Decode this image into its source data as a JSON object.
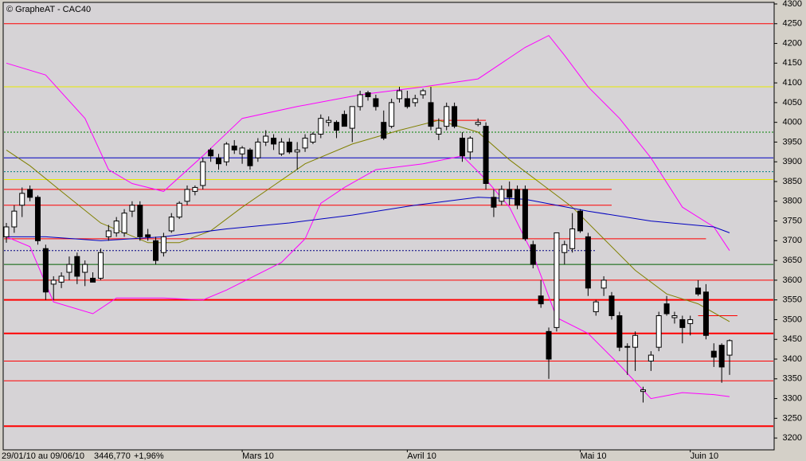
{
  "chart_data": {
    "type": "candlestick",
    "title": "© GrapheAT - CAC40",
    "period": "29/01/10 au 09/06/10",
    "last": "3446,770",
    "change": "+1,96%",
    "ylim": [
      3170,
      4304
    ],
    "yticks": [
      3200,
      3250,
      3300,
      3350,
      3400,
      3450,
      3500,
      3550,
      3600,
      3650,
      3700,
      3750,
      3800,
      3850,
      3900,
      3950,
      4000,
      4050,
      4100,
      4150,
      4200,
      4250,
      4300
    ],
    "xlabels": [
      {
        "value": 30,
        "label": "Mars 10"
      },
      {
        "value": 51,
        "label": "Avril 10"
      },
      {
        "value": 73,
        "label": "Mai 10"
      },
      {
        "value": 87,
        "label": "Juin 10"
      }
    ],
    "up_color": "#ffffff",
    "down_color": "#000000",
    "open": [
      3710,
      3735,
      3790,
      3830,
      3810,
      3680,
      3590,
      3595,
      3620,
      3660,
      3620,
      3605,
      3605,
      3710,
      3720,
      3720,
      3775,
      3790,
      3715,
      3700,
      3670,
      3725,
      3760,
      3800,
      3825,
      3840,
      3930,
      3910,
      3900,
      3940,
      3920,
      3930,
      3910,
      3950,
      3960,
      3920,
      3950,
      3925,
      3935,
      3950,
      3970,
      4000,
      4000,
      4020,
      3985,
      4040,
      4075,
      4060,
      4000,
      3990,
      4060,
      4060,
      4050,
      4070,
      4050,
      3970,
      3990,
      4040,
      3960,
      3925,
      3995,
      3990,
      3810,
      3800,
      3830,
      3830,
      3830,
      3690,
      3560,
      3470,
      3480,
      3670,
      3680,
      3775,
      3710,
      3520,
      3580,
      3560,
      3510,
      3430,
      3430,
      3318,
      3395,
      3430,
      3540,
      3505,
      3500,
      3490,
      3580,
      3570,
      3420,
      3435,
      3410
    ],
    "high": [
      3745,
      3790,
      3835,
      3840,
      3815,
      3690,
      3610,
      3620,
      3660,
      3670,
      3650,
      3620,
      3680,
      3740,
      3760,
      3780,
      3800,
      3800,
      3730,
      3710,
      3720,
      3770,
      3800,
      3840,
      3840,
      3910,
      3935,
      3920,
      3950,
      3955,
      3940,
      3935,
      3960,
      3980,
      3970,
      3960,
      3960,
      3950,
      3970,
      3975,
      4020,
      4015,
      4005,
      4030,
      4040,
      4080,
      4080,
      4070,
      4030,
      4060,
      4090,
      4080,
      4070,
      4085,
      4090,
      4010,
      4050,
      4050,
      3975,
      3965,
      4010,
      4000,
      3830,
      3840,
      3850,
      3840,
      3840,
      3700,
      3600,
      3480,
      3720,
      3700,
      3770,
      3780,
      3720,
      3550,
      3610,
      3570,
      3520,
      3440,
      3470,
      3330,
      3420,
      3520,
      3560,
      3520,
      3510,
      3510,
      3600,
      3590,
      3440,
      3440,
      3450
    ],
    "low": [
      3695,
      3720,
      3760,
      3800,
      3690,
      3550,
      3550,
      3580,
      3600,
      3590,
      3585,
      3595,
      3600,
      3700,
      3710,
      3710,
      3760,
      3700,
      3700,
      3640,
      3660,
      3720,
      3755,
      3790,
      3815,
      3830,
      3900,
      3880,
      3890,
      3920,
      3895,
      3880,
      3900,
      3940,
      3930,
      3915,
      3920,
      3880,
      3925,
      3945,
      3960,
      3990,
      3960,
      3990,
      3950,
      4030,
      4055,
      4030,
      3955,
      3985,
      4050,
      4035,
      4040,
      4060,
      3980,
      3955,
      3980,
      3985,
      3900,
      3905,
      3990,
      3830,
      3760,
      3790,
      3790,
      3780,
      3700,
      3630,
      3530,
      3350,
      3470,
      3640,
      3670,
      3720,
      3560,
      3510,
      3560,
      3500,
      3420,
      3360,
      3370,
      3290,
      3370,
      3420,
      3510,
      3490,
      3440,
      3460,
      3560,
      3450,
      3380,
      3340,
      3360
    ],
    "close": [
      3735,
      3775,
      3820,
      3810,
      3700,
      3570,
      3600,
      3610,
      3640,
      3610,
      3640,
      3595,
      3670,
      3725,
      3750,
      3770,
      3790,
      3710,
      3710,
      3650,
      3710,
      3760,
      3795,
      3830,
      3835,
      3900,
      3915,
      3895,
      3945,
      3930,
      3935,
      3890,
      3950,
      3965,
      3945,
      3950,
      3925,
      3930,
      3960,
      3970,
      4010,
      4005,
      3980,
      3990,
      4040,
      4070,
      4065,
      4040,
      3960,
      4050,
      4080,
      4040,
      4060,
      4080,
      3990,
      3985,
      4040,
      3990,
      3915,
      3960,
      4000,
      3845,
      3785,
      3830,
      3810,
      3790,
      3705,
      3640,
      3540,
      3400,
      3720,
      3690,
      3730,
      3725,
      3580,
      3545,
      3600,
      3510,
      3430,
      3432,
      3460,
      3322,
      3410,
      3510,
      3515,
      3510,
      3480,
      3500,
      3565,
      3460,
      3405,
      3380,
      3446.77
    ],
    "overlays": [
      {
        "color": "#ff00ff",
        "x": [
          0,
          5,
          10,
          13,
          16,
          20,
          25,
          30,
          37,
          45,
          53,
          60,
          63,
          66,
          69,
          71,
          74,
          78,
          82,
          86,
          90,
          92
        ],
        "values": [
          4150,
          4120,
          4010,
          3880,
          3845,
          3825,
          3915,
          4010,
          4040,
          4070,
          4090,
          4110,
          4150,
          4190,
          4220,
          4170,
          4090,
          4010,
          3910,
          3785,
          3735,
          3675
        ]
      },
      {
        "color": "#ff00ff",
        "x": [
          0,
          3,
          6,
          11,
          14,
          20,
          25,
          28,
          35,
          38,
          40,
          43,
          47,
          53,
          58,
          61,
          64,
          67,
          70,
          74,
          78,
          82,
          86,
          90,
          92
        ],
        "values": [
          3710,
          3685,
          3545,
          3515,
          3555,
          3555,
          3550,
          3575,
          3645,
          3705,
          3795,
          3835,
          3880,
          3895,
          3915,
          3855,
          3785,
          3665,
          3505,
          3465,
          3385,
          3300,
          3315,
          3310,
          3305
        ]
      },
      {
        "color": "#808000",
        "x": [
          0,
          3,
          7,
          12,
          18,
          22,
          26,
          30,
          34,
          38,
          44,
          50,
          55,
          60,
          64,
          68,
          72,
          76,
          80,
          84,
          88,
          92
        ],
        "values": [
          3930,
          3890,
          3825,
          3745,
          3695,
          3695,
          3725,
          3785,
          3840,
          3895,
          3945,
          3980,
          4005,
          3975,
          3905,
          3845,
          3785,
          3705,
          3625,
          3565,
          3540,
          3495
        ]
      },
      {
        "color": "#0000c0",
        "x": [
          0,
          5,
          12,
          20,
          28,
          36,
          44,
          52,
          60,
          66,
          74,
          82,
          90,
          92
        ],
        "values": [
          3710,
          3710,
          3700,
          3710,
          3730,
          3745,
          3765,
          3790,
          3810,
          3805,
          3775,
          3750,
          3735,
          3720
        ]
      }
    ],
    "levels": [
      {
        "value": 4250,
        "color": "#ff0000"
      },
      {
        "value": 4090,
        "color": "#e8e800"
      },
      {
        "value": 3975,
        "color": "#008000",
        "dash": true
      },
      {
        "value": 3910,
        "color": "#0000c0"
      },
      {
        "value": 3875,
        "color": "#008080",
        "dash": true
      },
      {
        "value": 3855,
        "color": "#e8e800"
      },
      {
        "value": 3830,
        "color": "#ff0000",
        "to": 77
      },
      {
        "value": 3790,
        "color": "#ff0000",
        "to": 77
      },
      {
        "value": 3705,
        "color": "#ff0000",
        "to": 89
      },
      {
        "value": 3675,
        "color": "#000080",
        "dash": true,
        "to": 75
      },
      {
        "value": 3640,
        "color": "#006000"
      },
      {
        "value": 3600,
        "color": "#ff0000"
      },
      {
        "value": 3550,
        "color": "#ff0000",
        "width": 2
      },
      {
        "value": 3465,
        "color": "#ff0000",
        "width": 2
      },
      {
        "value": 3395,
        "color": "#ff0000"
      },
      {
        "value": 3345,
        "color": "#ff0000"
      },
      {
        "value": 3230,
        "color": "#ff0000",
        "width": 2
      },
      {
        "value": 4005,
        "color": "#ff0000",
        "from": 54,
        "to": 61
      },
      {
        "value": 3510,
        "color": "#ff0000",
        "from": 88,
        "to": 93
      }
    ]
  }
}
